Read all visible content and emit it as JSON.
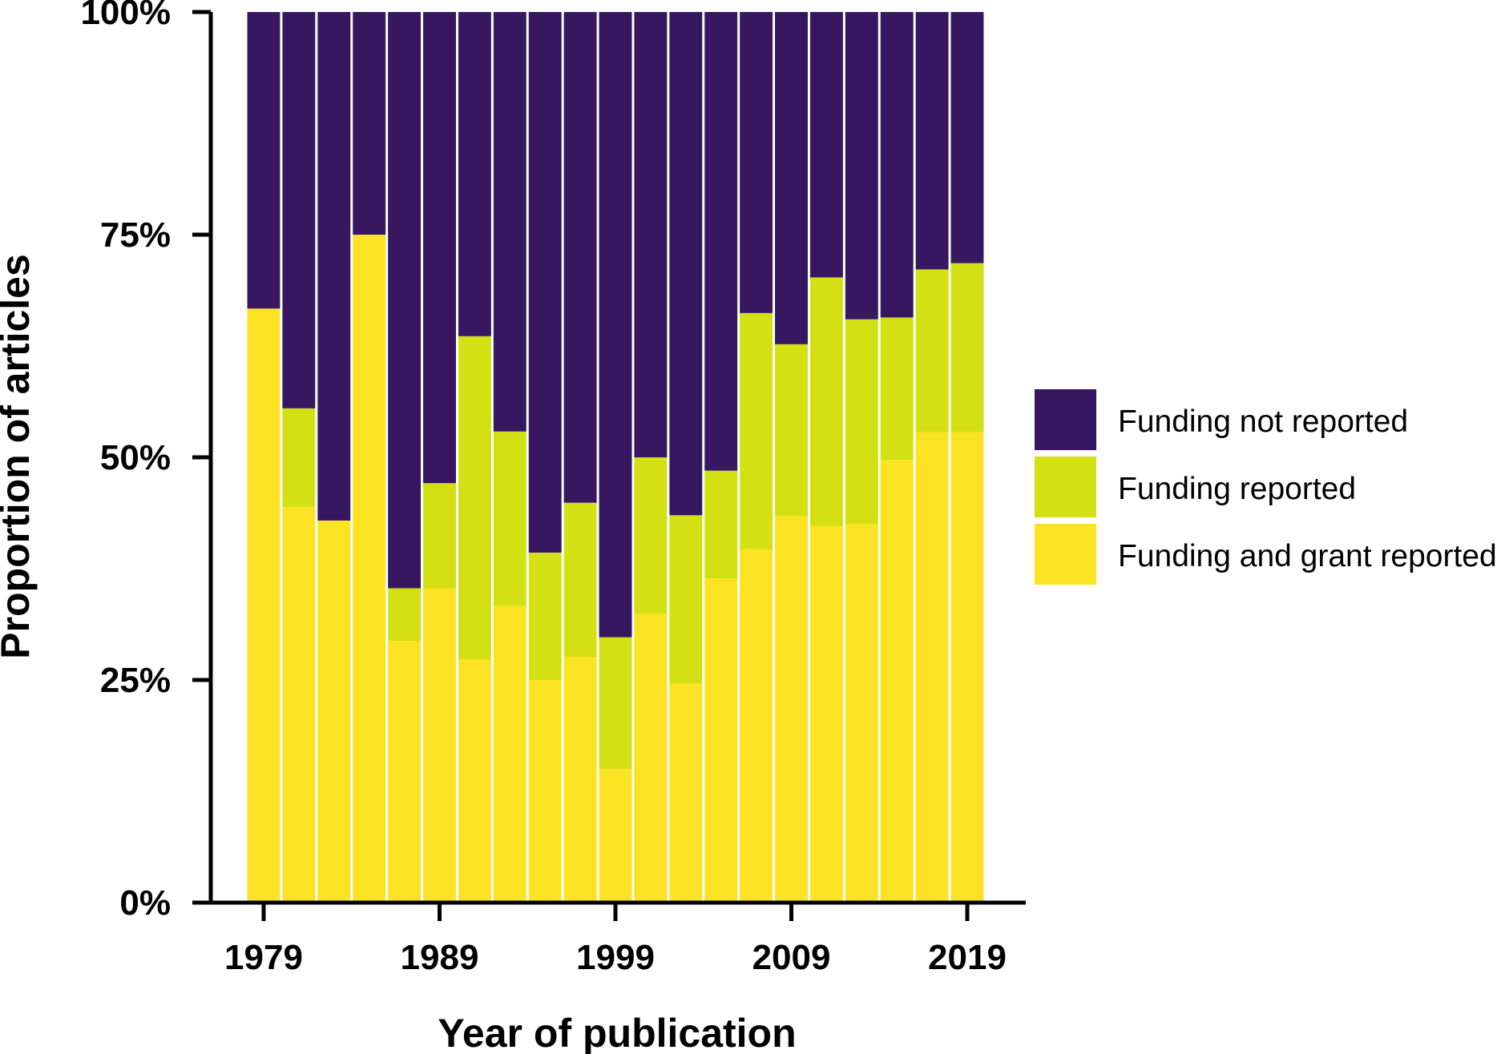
{
  "chart_data": {
    "type": "bar",
    "stacked": true,
    "normalized": true,
    "title": "",
    "xlabel": "Year of publication",
    "ylabel": "Proportion of articles",
    "ylim": [
      0,
      100
    ],
    "y_ticks": [
      {
        "value": 0,
        "label": "0%"
      },
      {
        "value": 25,
        "label": "25%"
      },
      {
        "value": 50,
        "label": "50%"
      },
      {
        "value": 75,
        "label": "75%"
      },
      {
        "value": 100,
        "label": "100%"
      }
    ],
    "x_ticks": [
      {
        "value": 1979,
        "label": "1979"
      },
      {
        "value": 1989,
        "label": "1989"
      },
      {
        "value": 1999,
        "label": "1999"
      },
      {
        "value": 2009,
        "label": "2009"
      },
      {
        "value": 2019,
        "label": "2019"
      }
    ],
    "bin_width_years": 2,
    "x": [
      1979,
      1981,
      1983,
      1985,
      1987,
      1989,
      1991,
      1993,
      1995,
      1997,
      1999,
      2001,
      2003,
      2005,
      2007,
      2009,
      2011,
      2013,
      2015,
      2017,
      2019
    ],
    "grid": false,
    "legend_position": "right",
    "series": [
      {
        "name": "Funding and grant reported",
        "color": "#FBE324",
        "values": [
          66.7,
          44.4,
          42.9,
          75.0,
          29.4,
          35.3,
          27.3,
          33.3,
          25.0,
          27.6,
          15.0,
          32.4,
          24.6,
          36.4,
          39.7,
          43.4,
          42.3,
          42.5,
          49.7,
          52.8,
          52.8
        ]
      },
      {
        "name": "Funding reported",
        "color": "#D3E013",
        "values": [
          0.0,
          11.1,
          0.0,
          0.0,
          5.9,
          11.8,
          36.3,
          19.6,
          14.3,
          17.3,
          14.8,
          17.6,
          18.9,
          12.1,
          26.5,
          19.3,
          27.9,
          23.0,
          16.0,
          18.3,
          19.0
        ]
      },
      {
        "name": "Funding not reported",
        "color": "#37175F",
        "values": [
          33.3,
          44.5,
          57.1,
          25.0,
          64.7,
          52.9,
          36.4,
          47.1,
          60.7,
          55.1,
          70.2,
          50.0,
          56.5,
          51.5,
          33.8,
          37.3,
          29.8,
          34.5,
          34.3,
          28.9,
          28.2
        ]
      }
    ],
    "legend_order": [
      "Funding not reported",
      "Funding reported",
      "Funding and grant reported"
    ]
  }
}
